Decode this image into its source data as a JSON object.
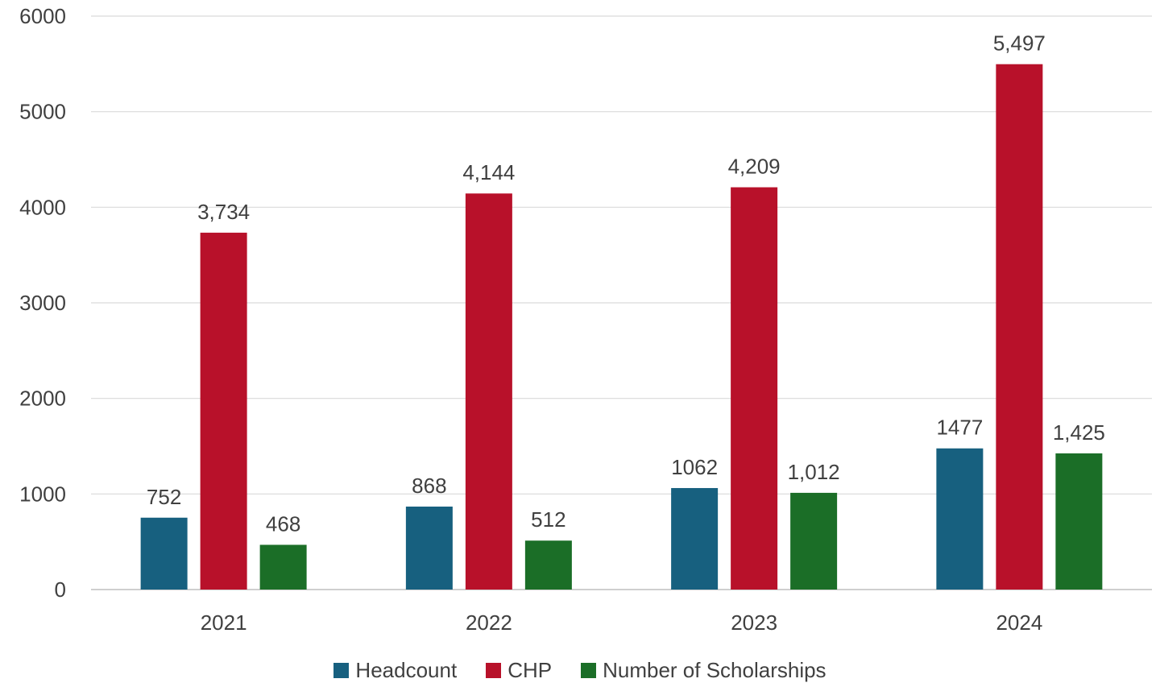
{
  "chart_data": {
    "type": "bar",
    "title": "",
    "xlabel": "",
    "ylabel": "",
    "categories": [
      "2021",
      "2022",
      "2023",
      "2024"
    ],
    "ylim": [
      0,
      6000
    ],
    "yticks": [
      "0",
      "1000",
      "2000",
      "3000",
      "4000",
      "5000",
      "6000"
    ],
    "grid": true,
    "legend_position": "bottom",
    "series": [
      {
        "name": "Headcount",
        "color": "#17607f",
        "values": [
          752,
          868,
          1062,
          1477
        ],
        "labels": [
          "752",
          "868",
          "1062",
          "1477"
        ]
      },
      {
        "name": "CHP",
        "color": "#b8112a",
        "values": [
          3734,
          4144,
          4209,
          5497
        ],
        "labels": [
          "3,734",
          "4,144",
          "4,209",
          "5,497"
        ]
      },
      {
        "name": "Number of Scholarships",
        "color": "#1b6e27",
        "values": [
          468,
          512,
          1012,
          1425
        ],
        "labels": [
          "468",
          "512",
          "1,012",
          "1,425"
        ]
      }
    ]
  }
}
